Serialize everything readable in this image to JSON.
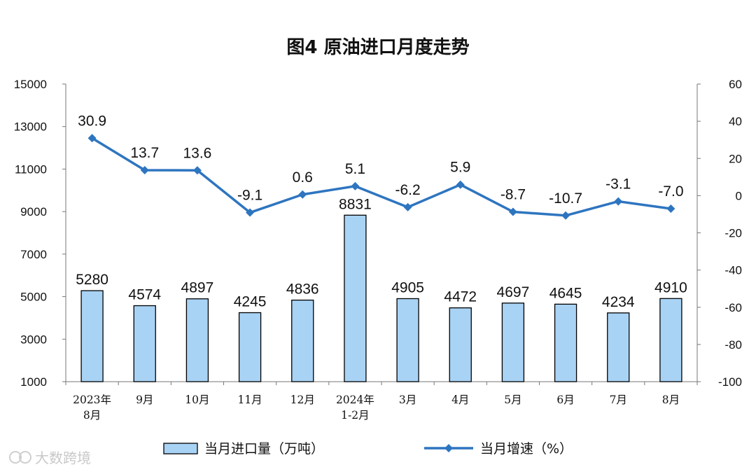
{
  "chart_data": {
    "type": "bar+line",
    "title": "图4  原油进口月度走势",
    "categories": [
      [
        "2023年",
        "8月"
      ],
      [
        "9月"
      ],
      [
        "10月"
      ],
      [
        "11月"
      ],
      [
        "12月"
      ],
      [
        "2024年",
        "1-2月"
      ],
      [
        "3月"
      ],
      [
        "4月"
      ],
      [
        "5月"
      ],
      [
        "6月"
      ],
      [
        "7月"
      ],
      [
        "8月"
      ]
    ],
    "series": [
      {
        "name": "当月进口量（万吨）",
        "type": "bar",
        "axis": "left",
        "color": "#a9d3f5",
        "edge_color": "#000000",
        "values": [
          5280,
          4574,
          4897,
          4245,
          4836,
          8831,
          4905,
          4472,
          4697,
          4645,
          4234,
          4910
        ],
        "labels": [
          "5280",
          "4574",
          "4897",
          "4245",
          "4836",
          "8831",
          "4905",
          "4472",
          "4697",
          "4645",
          "4234",
          "4910"
        ]
      },
      {
        "name": "当月增速（%）",
        "type": "line",
        "axis": "right",
        "color": "#2e75c0",
        "values": [
          30.9,
          13.7,
          13.6,
          -9.1,
          0.6,
          5.1,
          -6.2,
          5.9,
          -8.7,
          -10.7,
          -3.1,
          -7.0
        ],
        "labels": [
          "30.9",
          "13.7",
          "13.6",
          "-9.1",
          "0.6",
          "5.1",
          "-6.2",
          "5.9",
          "-8.7",
          "-10.7",
          "-3.1",
          "-7.0"
        ]
      }
    ],
    "y_left": {
      "ylim": [
        1000,
        15000
      ],
      "ticks": [
        "1000",
        "3000",
        "5000",
        "7000",
        "9000",
        "11000",
        "13000",
        "15000"
      ]
    },
    "y_right": {
      "ylim": [
        -100,
        60
      ],
      "ticks": [
        "-100",
        "-80",
        "-60",
        "-40",
        "-20",
        "0",
        "20",
        "40",
        "60"
      ]
    },
    "grid": false,
    "legend": "bottom"
  },
  "watermark": "大数跨境"
}
